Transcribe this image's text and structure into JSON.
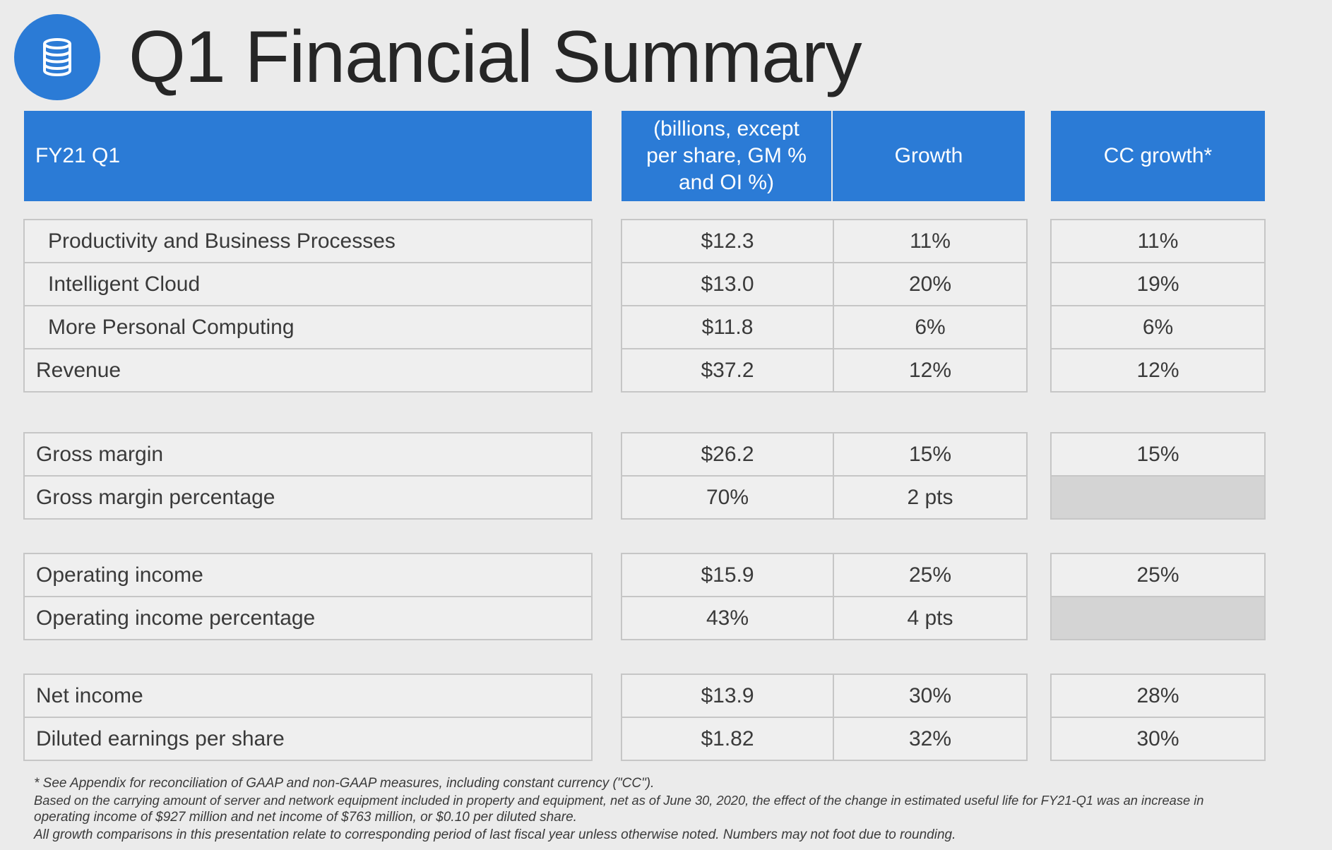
{
  "title": "Q1 Financial Summary",
  "logo_icon": "database-icon",
  "colors": {
    "accent": "#2b7bd6",
    "background": "#ebebeb",
    "empty_cell": "#d4d4d4"
  },
  "header": {
    "label": "FY21 Q1",
    "col1": "(billions, except per share, GM % and OI %)",
    "col2": "Growth",
    "col3": "CC growth*"
  },
  "groups": [
    {
      "rows": [
        {
          "label": "Productivity and Business Processes",
          "value": "$12.3",
          "growth": "11%",
          "cc": "11%"
        },
        {
          "label": "Intelligent Cloud",
          "value": "$13.0",
          "growth": "20%",
          "cc": "19%"
        },
        {
          "label": "More Personal Computing",
          "value": "$11.8",
          "growth": "6%",
          "cc": "6%"
        },
        {
          "label": "Revenue",
          "value": "$37.2",
          "growth": "12%",
          "cc": "12%"
        }
      ]
    },
    {
      "rows": [
        {
          "label": "Gross margin",
          "value": "$26.2",
          "growth": "15%",
          "cc": "15%"
        },
        {
          "label": "Gross margin percentage",
          "value": "70%",
          "growth": "2 pts",
          "cc": ""
        }
      ]
    },
    {
      "rows": [
        {
          "label": "Operating income",
          "value": "$15.9",
          "growth": "25%",
          "cc": "25%"
        },
        {
          "label": "Operating income percentage",
          "value": "43%",
          "growth": "4 pts",
          "cc": ""
        }
      ]
    },
    {
      "rows": [
        {
          "label": "Net income",
          "value": "$13.9",
          "growth": "30%",
          "cc": "28%"
        },
        {
          "label": "Diluted earnings per share",
          "value": "$1.82",
          "growth": "32%",
          "cc": "30%"
        }
      ]
    }
  ],
  "footnotes": [
    "* See Appendix for reconciliation of GAAP and non-GAAP measures, including constant currency (\"CC\").",
    "Based on the carrying amount of server and network equipment included in property and equipment, net as of June 30, 2020, the effect of the change in estimated useful life for FY21-Q1 was an increase in",
    "operating income of $927 million and net income of $763 million, or $0.10 per diluted share.",
    "All growth comparisons in this presentation relate to corresponding period of last fiscal year unless otherwise noted. Numbers may not foot due to rounding."
  ]
}
